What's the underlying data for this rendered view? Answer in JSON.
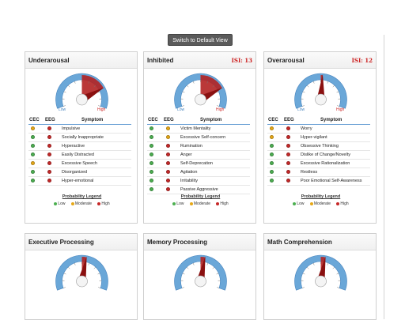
{
  "toolbar": {
    "switch_label": "Switch to Default View"
  },
  "colors": {
    "low": "#4caf50",
    "moderate": "#e6a817",
    "high": "#c62828",
    "gauge_blue": "#6aa7d8",
    "gauge_red": "#b22222"
  },
  "headers": {
    "cec": "CEC",
    "eeg": "EEG",
    "symptom": "Symptom"
  },
  "legend": {
    "title": "Probability Legend",
    "low": "Low",
    "moderate": "Moderate",
    "high": "High"
  },
  "gauge_labels": {
    "low": "Low",
    "high": "High"
  },
  "cards": [
    {
      "title": "Underarousal",
      "isi": "",
      "level": 0.78,
      "rows": [
        {
          "symptom": "Impulsive",
          "cec": "moderate",
          "eeg": "high"
        },
        {
          "symptom": "Socially Inappropriate",
          "cec": "low",
          "eeg": "high"
        },
        {
          "symptom": "Hyperactive",
          "cec": "low",
          "eeg": "high"
        },
        {
          "symptom": "Easily Distracted",
          "cec": "low",
          "eeg": "high"
        },
        {
          "symptom": "Excessive Speech",
          "cec": "moderate",
          "eeg": "high"
        },
        {
          "symptom": "Disorganized",
          "cec": "low",
          "eeg": "high"
        },
        {
          "symptom": "Hyper-emotional",
          "cec": "low",
          "eeg": "high"
        }
      ]
    },
    {
      "title": "Inhibited",
      "isi": "ISI: 13",
      "level": 0.78,
      "rows": [
        {
          "symptom": "Victim Mentality",
          "cec": "low",
          "eeg": "moderate"
        },
        {
          "symptom": "Excessive Self-concern",
          "cec": "low",
          "eeg": "moderate"
        },
        {
          "symptom": "Rumination",
          "cec": "low",
          "eeg": "high"
        },
        {
          "symptom": "Anger",
          "cec": "low",
          "eeg": "high"
        },
        {
          "symptom": "Self-Deprecation",
          "cec": "low",
          "eeg": "high"
        },
        {
          "symptom": "Agitation",
          "cec": "low",
          "eeg": "high"
        },
        {
          "symptom": "Irritability",
          "cec": "low",
          "eeg": "high"
        },
        {
          "symptom": "Passive Aggressive",
          "cec": "low",
          "eeg": "high"
        }
      ]
    },
    {
      "title": "Overarousal",
      "isi": "ISI: 12",
      "level": 0.52,
      "rows": [
        {
          "symptom": "Worry",
          "cec": "moderate",
          "eeg": "high"
        },
        {
          "symptom": "Hyper-vigilant",
          "cec": "moderate",
          "eeg": "high"
        },
        {
          "symptom": "Obsessive Thinking",
          "cec": "low",
          "eeg": "high"
        },
        {
          "symptom": "Dislike of Change/Novelty",
          "cec": "low",
          "eeg": "high"
        },
        {
          "symptom": "Excessive Rationalization",
          "cec": "low",
          "eeg": "high"
        },
        {
          "symptom": "Restless",
          "cec": "low",
          "eeg": "high"
        },
        {
          "symptom": "Poor Emotional Self-Awareness",
          "cec": "low",
          "eeg": "high"
        }
      ]
    },
    {
      "title": "Executive Processing",
      "isi": "",
      "level": 0.55,
      "rows": []
    },
    {
      "title": "Memory Processing",
      "isi": "",
      "level": 0.55,
      "rows": []
    },
    {
      "title": "Math Comprehension",
      "isi": "",
      "level": 0.55,
      "rows": []
    }
  ]
}
